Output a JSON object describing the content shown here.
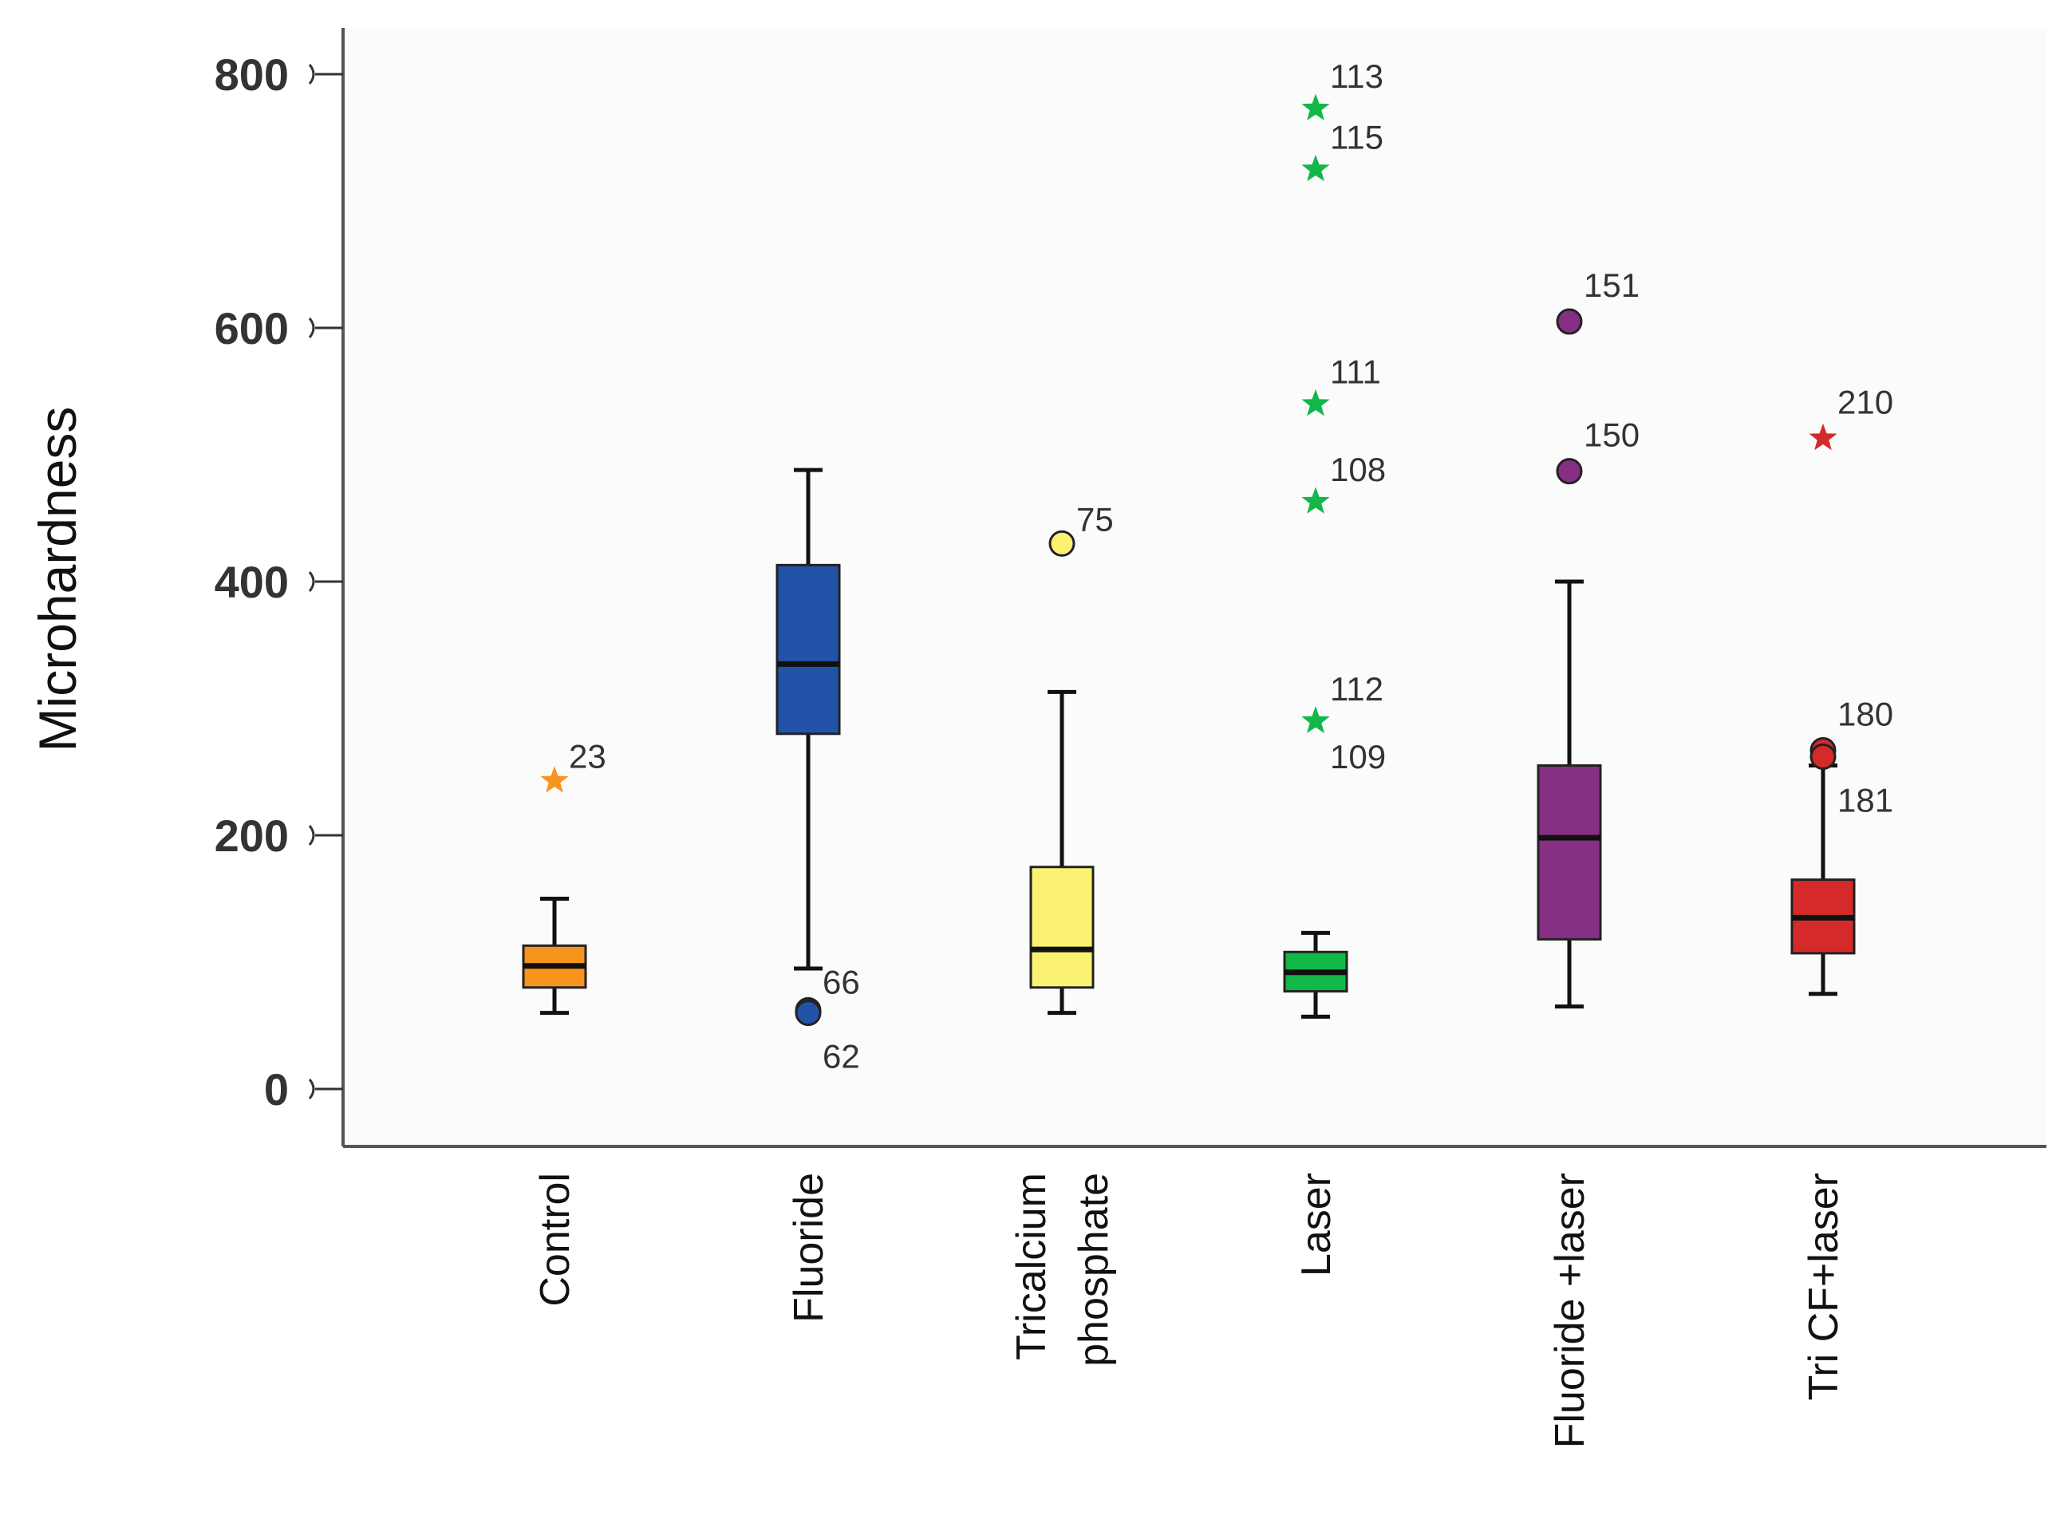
{
  "chart_data": {
    "type": "box",
    "ylabel": "Microhardness",
    "ylim": [
      0,
      800
    ],
    "yticks": [
      0,
      200,
      400,
      600,
      800
    ],
    "categories": [
      {
        "label": [
          "Control"
        ],
        "color": "#f7941d"
      },
      {
        "label": [
          "Fluoride"
        ],
        "color": "#2353a8"
      },
      {
        "label": [
          "Tricalcium",
          "phosphate"
        ],
        "color": "#fbf271"
      },
      {
        "label": [
          "Laser"
        ],
        "color": "#12b74a"
      },
      {
        "label": [
          "Fluoride +laser"
        ],
        "color": "#862f84"
      },
      {
        "label": [
          "Tri CF+laser"
        ],
        "color": "#d42a2a"
      }
    ],
    "boxes": [
      {
        "min": 60,
        "q1": 80,
        "median": 97,
        "q3": 113,
        "max": 150
      },
      {
        "min": 95,
        "q1": 280,
        "median": 335,
        "q3": 413,
        "max": 488
      },
      {
        "min": 60,
        "q1": 80,
        "median": 110,
        "q3": 175,
        "max": 313
      },
      {
        "min": 57,
        "q1": 77,
        "median": 92,
        "q3": 108,
        "max": 123
      },
      {
        "min": 65,
        "q1": 118,
        "median": 198,
        "q3": 255,
        "max": 400
      },
      {
        "min": 75,
        "q1": 107,
        "median": 135,
        "q3": 165,
        "max": 255
      }
    ],
    "outliers": [
      {
        "category": 0,
        "value": 243,
        "marker": "star",
        "label": "23",
        "label_side": "right"
      },
      {
        "category": 1,
        "value": 62,
        "marker": "circle",
        "label": "66",
        "label_side": "right"
      },
      {
        "category": 1,
        "value": 60,
        "marker": "circle",
        "label": "62",
        "label_side": "right"
      },
      {
        "category": 2,
        "value": 430,
        "marker": "circle",
        "label": "75",
        "label_side": "right"
      },
      {
        "category": 3,
        "value": 773,
        "marker": "star",
        "label": "113",
        "label_side": "right"
      },
      {
        "category": 3,
        "value": 725,
        "marker": "star",
        "label": "115",
        "label_side": "right"
      },
      {
        "category": 3,
        "value": 540,
        "marker": "star",
        "label": "111",
        "label_side": "right"
      },
      {
        "category": 3,
        "value": 463,
        "marker": "star",
        "label": "108",
        "label_side": "right"
      },
      {
        "category": 3,
        "value": 290,
        "marker": "star",
        "label": "112",
        "label_side": "right"
      },
      {
        "category": 3,
        "value": 290,
        "marker": "star",
        "label": "109",
        "label_side": "right"
      },
      {
        "category": 4,
        "value": 605,
        "marker": "circle",
        "label": "151",
        "label_side": "right"
      },
      {
        "category": 4,
        "value": 487,
        "marker": "circle",
        "label": "150",
        "label_side": "right"
      },
      {
        "category": 5,
        "value": 513,
        "marker": "star",
        "label": "210",
        "label_side": "right"
      },
      {
        "category": 5,
        "value": 267,
        "marker": "circle",
        "label": "180",
        "label_side": "right"
      },
      {
        "category": 5,
        "value": 262,
        "marker": "circle",
        "label": "181",
        "label_side": "right"
      }
    ]
  }
}
